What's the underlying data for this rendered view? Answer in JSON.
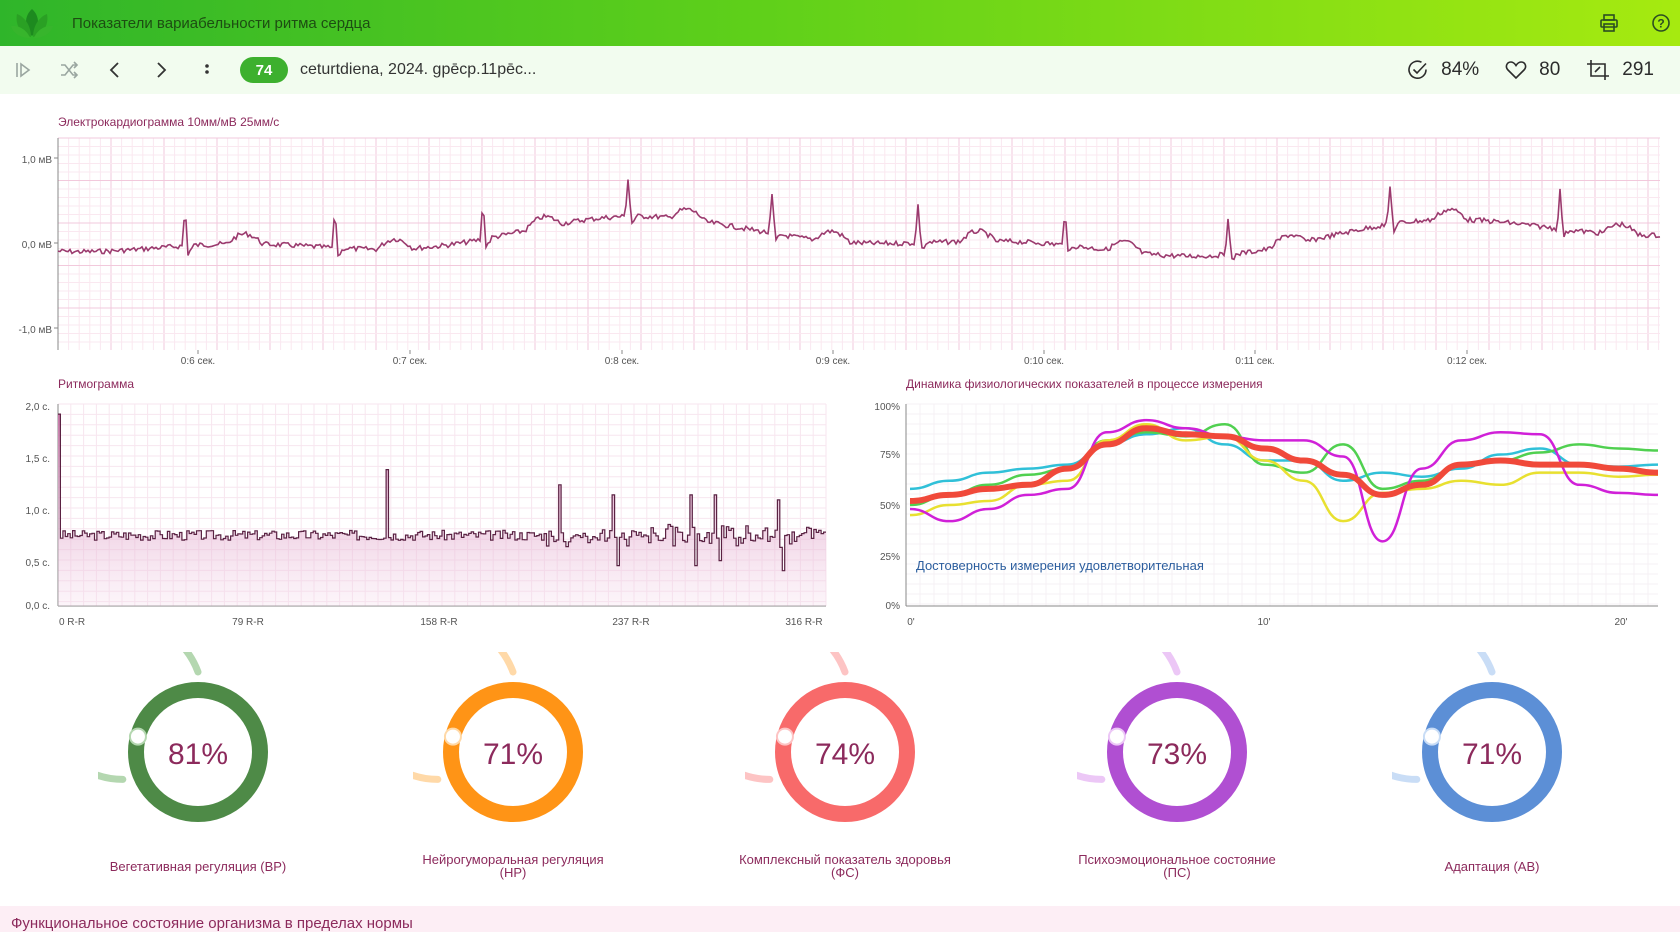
{
  "app": {
    "title": "Показатели вариабельности ритма сердца"
  },
  "toolbar": {
    "badge": "74",
    "record": "ceturtdiena, 2024. gpēcp.11pēc...",
    "stats": [
      {
        "icon": "check-circle-icon",
        "value": "84%"
      },
      {
        "icon": "heart-icon",
        "value": "80"
      },
      {
        "icon": "crop-icon",
        "value": "291"
      }
    ]
  },
  "ecg": {
    "title": "Электрокардиограмма 10мм/мВ 25мм/с",
    "y_ticks": [
      "1,0 мВ",
      "0,0 мВ",
      "-1,0 мВ"
    ],
    "x_ticks": [
      "0:6 сек.",
      "0:7 сек.",
      "0:8 сек.",
      "0:9 сек.",
      "0:10 сек.",
      "0:11 сек.",
      "0:12 сек."
    ]
  },
  "rhythmogram": {
    "title": "Ритмограмма",
    "y_ticks": [
      "2,0 с.",
      "1,5 с.",
      "1,0 с.",
      "0,5 с.",
      "0,0 с."
    ],
    "x_ticks": [
      "0 R-R",
      "79 R-R",
      "158 R-R",
      "237 R-R",
      "316 R-R"
    ]
  },
  "dynamics": {
    "title": "Динамика физиологических показателей в процессе измерения",
    "y_ticks": [
      "100%",
      "75%",
      "50%",
      "25%",
      "0%"
    ],
    "x_ticks": [
      "0'",
      "10'",
      "20'"
    ],
    "note": "Достоверность измерения удовлетворительная"
  },
  "gauges": [
    {
      "value": "81%",
      "fraction": 0.81,
      "label_1": "Вегетативная регуляция (ВР)",
      "label_2": "",
      "color": "#4e8a47",
      "light": "#b4d7b0"
    },
    {
      "value": "71%",
      "fraction": 0.71,
      "label_1": "Нейрогуморальная регуляция",
      "label_2": "(НР)",
      "color": "#ff9416",
      "light": "#ffd9a8"
    },
    {
      "value": "74%",
      "fraction": 0.74,
      "label_1": "Комплексный показатель здоровья",
      "label_2": "(ФС)",
      "color": "#f86a6a",
      "light": "#fdc4c4"
    },
    {
      "value": "73%",
      "fraction": 0.73,
      "label_1": "Психоэмоциональное состояние",
      "label_2": "(ПС)",
      "color": "#b04fd2",
      "light": "#ecc7f6"
    },
    {
      "value": "71%",
      "fraction": 0.71,
      "label_1": "Адаптация (АВ)",
      "label_2": "",
      "color": "#5c8fd6",
      "light": "#c9ddf6"
    }
  ],
  "footer": {
    "text": "Функциональное состояние организма в пределах нормы"
  },
  "colors": {
    "accent": "#3db02e",
    "plot": "#8c2a5c",
    "series": [
      "#f0493a",
      "#30c0d8",
      "#50d050",
      "#e8e030",
      "#d020d8"
    ]
  }
}
